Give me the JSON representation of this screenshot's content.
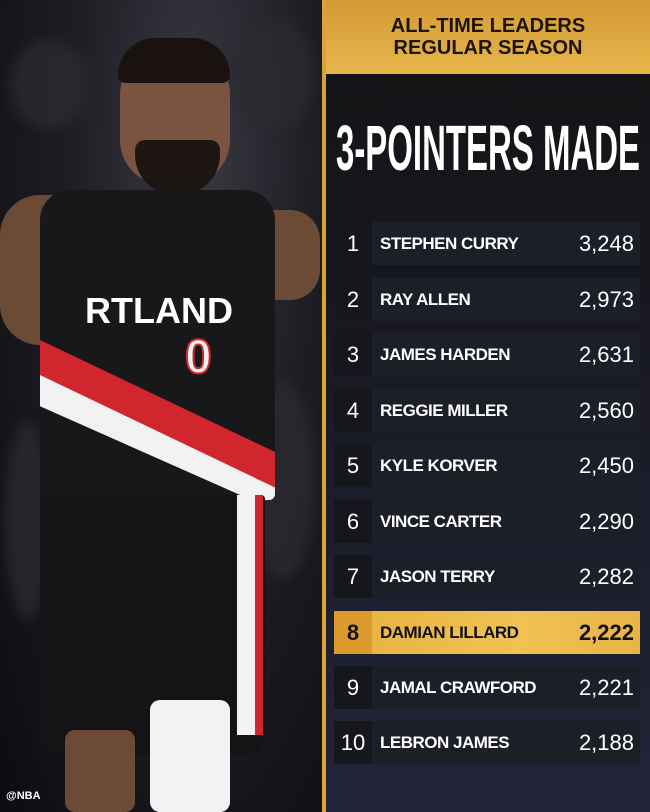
{
  "header": {
    "line1": "ALL-TIME LEADERS",
    "line2": "REGULAR SEASON"
  },
  "title": "3-POINTERS MADE",
  "watermark": "@NBA",
  "jersey": {
    "text": "RTLAND",
    "number": "0"
  },
  "colors": {
    "gold": "#e8b64b",
    "highlight": "#f0c253",
    "row": "#1c1f27",
    "jersey_red": "#d2262e"
  },
  "leaders": [
    {
      "rank": "1",
      "name": "STEPHEN CURRY",
      "value": "3,248"
    },
    {
      "rank": "2",
      "name": "RAY ALLEN",
      "value": "2,973"
    },
    {
      "rank": "3",
      "name": "JAMES HARDEN",
      "value": "2,631"
    },
    {
      "rank": "4",
      "name": "REGGIE MILLER",
      "value": "2,560"
    },
    {
      "rank": "5",
      "name": "KYLE KORVER",
      "value": "2,450"
    },
    {
      "rank": "6",
      "name": "VINCE CARTER",
      "value": "2,290"
    },
    {
      "rank": "7",
      "name": "JASON TERRY",
      "value": "2,282"
    },
    {
      "rank": "8",
      "name": "DAMIAN LILLARD",
      "value": "2,222",
      "highlighted": true
    },
    {
      "rank": "9",
      "name": "JAMAL CRAWFORD",
      "value": "2,221"
    },
    {
      "rank": "10",
      "name": "LEBRON JAMES",
      "value": "2,188"
    }
  ]
}
